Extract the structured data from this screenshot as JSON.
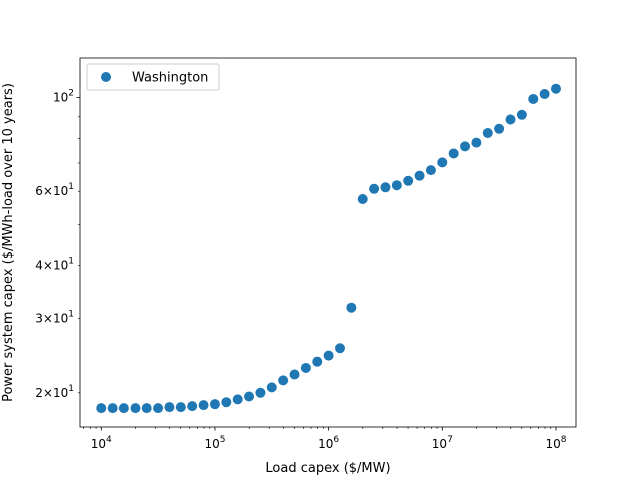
{
  "chart_data": {
    "type": "scatter",
    "title": "",
    "xlabel": "Load capex ($/MW)",
    "ylabel": "Power system capex ($/MWh-load over 10 years)",
    "xscale": "log",
    "yscale": "log",
    "xlim": [
      6500,
      150000000
    ],
    "ylim": [
      16.6,
      124
    ],
    "grid": false,
    "legend": {
      "position": "top-left",
      "entries": [
        "Washington"
      ]
    },
    "color": "#1f77b4",
    "x_ticks": [
      {
        "value": 10000,
        "base": "10",
        "exp": "4"
      },
      {
        "value": 100000,
        "base": "10",
        "exp": "5"
      },
      {
        "value": 1000000,
        "base": "10",
        "exp": "6"
      },
      {
        "value": 10000000,
        "base": "10",
        "exp": "7"
      },
      {
        "value": 100000000,
        "base": "10",
        "exp": "8"
      }
    ],
    "y_ticks": [
      {
        "value": 20,
        "mant": "2",
        "base": "10",
        "exp": "1"
      },
      {
        "value": 30,
        "mant": "3",
        "base": "10",
        "exp": "1"
      },
      {
        "value": 40,
        "mant": "4",
        "base": "10",
        "exp": "1"
      },
      {
        "value": 60,
        "mant": "6",
        "base": "10",
        "exp": "1"
      },
      {
        "value": 100,
        "mant": "",
        "base": "10",
        "exp": "2"
      }
    ],
    "series": [
      {
        "name": "Washington",
        "x": [
          10000,
          12600,
          15800,
          20000,
          25100,
          31600,
          39800,
          50100,
          63100,
          79400,
          100000,
          125900,
          158500,
          199500,
          251200,
          316200,
          398100,
          501200,
          631000,
          794300,
          1000000,
          1259000,
          1585000,
          1995000,
          2512000,
          3162000,
          3981000,
          5012000,
          6310000,
          7943000,
          10000000,
          12590000,
          15850000,
          19950000,
          25120000,
          31620000,
          39810000,
          50120000,
          63100000,
          79430000,
          100000000
        ],
        "y": [
          18.4,
          18.4,
          18.4,
          18.4,
          18.4,
          18.4,
          18.5,
          18.5,
          18.6,
          18.7,
          18.8,
          19.0,
          19.3,
          19.6,
          20.0,
          20.6,
          21.4,
          22.1,
          22.9,
          23.7,
          24.5,
          25.5,
          31.8,
          57.5,
          60.8,
          61.3,
          62.0,
          63.5,
          65.3,
          67.3,
          70.2,
          73.7,
          76.6,
          78.2,
          82.4,
          84.3,
          88.7,
          91.0,
          99.2,
          101.9,
          104.9
        ]
      }
    ]
  }
}
